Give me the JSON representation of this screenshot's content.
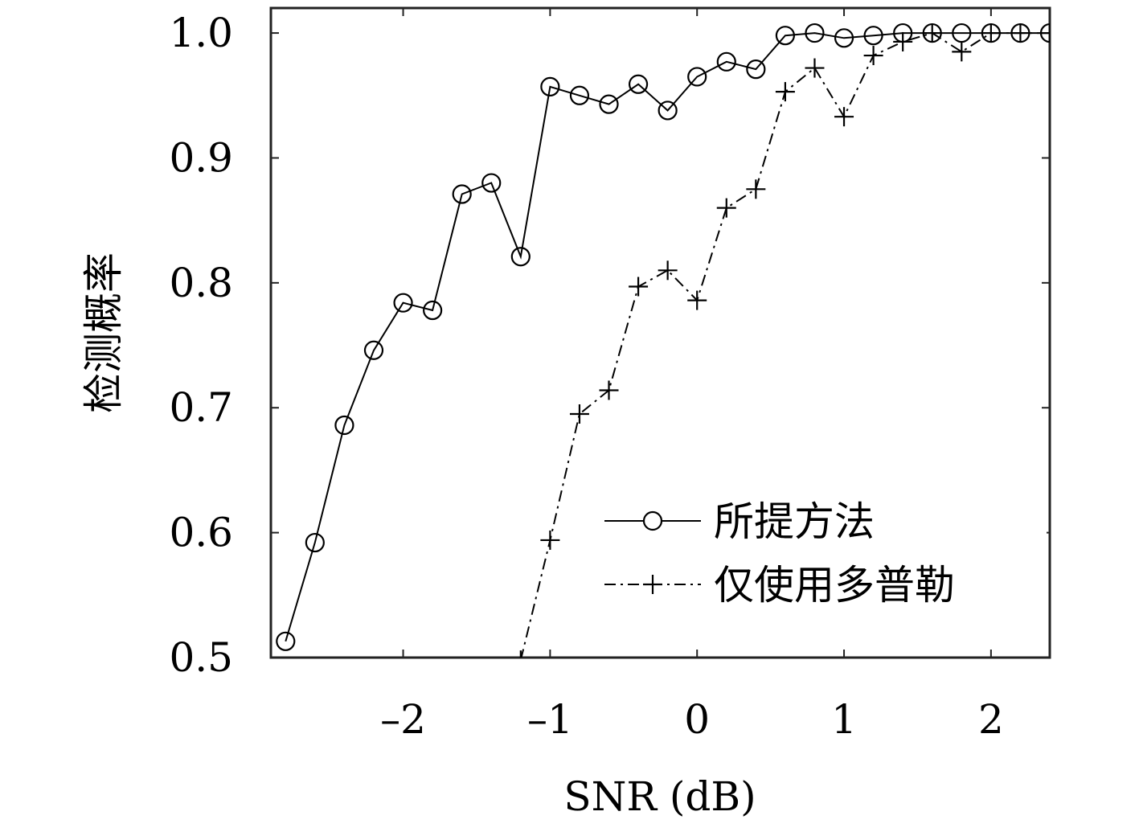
{
  "chart_data": {
    "type": "line",
    "title": "",
    "xlabel": "SNR (dB)",
    "ylabel": "检测概率",
    "xlim": [
      -2.9,
      2.4
    ],
    "ylim": [
      0.5,
      1.02
    ],
    "grid": false,
    "legend_position": "lower-right",
    "x_ticks": [
      -2,
      -1,
      0,
      1,
      2
    ],
    "x_tick_labels": [
      "–2",
      "–1",
      "0",
      "1",
      "2"
    ],
    "y_ticks": [
      0.5,
      0.6,
      0.7,
      0.8,
      0.9,
      1.0
    ],
    "y_tick_labels": [
      "0.5",
      "0.6",
      "0.7",
      "0.8",
      "0.9",
      "1.0"
    ],
    "series": [
      {
        "name": "所提方法",
        "marker": "circle",
        "line_style": "solid",
        "color": "#000000",
        "x": [
          -2.8,
          -2.6,
          -2.4,
          -2.2,
          -2.0,
          -1.8,
          -1.6,
          -1.4,
          -1.2,
          -1.0,
          -0.8,
          -0.6,
          -0.4,
          -0.2,
          0.0,
          0.2,
          0.4,
          0.6,
          0.8,
          1.0,
          1.2,
          1.4,
          1.6,
          1.8,
          2.0,
          2.2,
          2.4
        ],
        "y": [
          0.513,
          0.592,
          0.686,
          0.746,
          0.784,
          0.778,
          0.871,
          0.88,
          0.821,
          0.957,
          0.95,
          0.943,
          0.959,
          0.938,
          0.965,
          0.977,
          0.971,
          0.998,
          1.0,
          0.996,
          0.998,
          1.0,
          1.0,
          1.0,
          1.0,
          1.0,
          1.0
        ]
      },
      {
        "name": "仅使用多普勒",
        "marker": "plus",
        "line_style": "dashdot",
        "color": "#000000",
        "x": [
          -1.2,
          -1.0,
          -0.8,
          -0.6,
          -0.4,
          -0.2,
          0.0,
          0.2,
          0.4,
          0.6,
          0.8,
          1.0,
          1.2,
          1.4,
          1.6,
          1.8,
          2.0,
          2.2,
          2.4
        ],
        "y": [
          0.498,
          0.594,
          0.695,
          0.714,
          0.797,
          0.81,
          0.786,
          0.86,
          0.875,
          0.953,
          0.972,
          0.933,
          0.982,
          0.993,
          1.0,
          0.985,
          1.0,
          1.0,
          1.0
        ]
      }
    ]
  }
}
